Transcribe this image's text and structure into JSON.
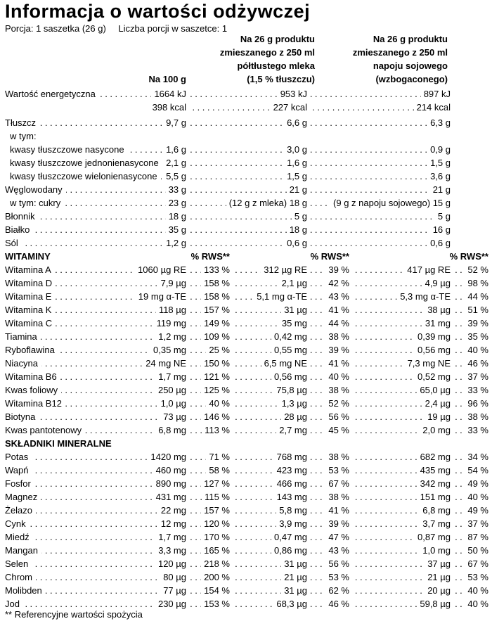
{
  "page": {
    "title": "Informacja o wartości odżywczej",
    "serving": "Porcja: 1 saszetka (26 g)",
    "servings_per_pack": "Liczba porcji w saszetce: 1",
    "footnote": "** Referencyjne wartości spożycia"
  },
  "columns": {
    "per_100g": "Na 100 g",
    "milk": [
      "Na 26 g produktu",
      "zmieszanego z 250 ml",
      "półtłustego mleka",
      "(1,5 % tłuszczu)"
    ],
    "soy": [
      "Na 26 g produktu",
      "zmieszanego z 250 ml",
      "napoju sojowego",
      "(wzbogaconego)"
    ],
    "rws_header": "% RWS**"
  },
  "rows": [
    {
      "type": "plain",
      "indent": 0,
      "label": "Wartość energetyczna",
      "v1": "1664 kJ",
      "v2": "953 kJ",
      "v3": "897 kJ"
    },
    {
      "type": "cont",
      "indent": 0,
      "label": "",
      "v1": "398 kcal",
      "v2": "227 kcal",
      "v3": "214 kcal"
    },
    {
      "type": "plain",
      "indent": 0,
      "label": "Tłuszcz",
      "v1": "9,7 g",
      "v2": "6,6 g",
      "v3": "6,3 g"
    },
    {
      "type": "subnote",
      "indent": 1,
      "label": "w tym:"
    },
    {
      "type": "plain",
      "indent": 1,
      "label": "kwasy tłuszczowe nasycone",
      "v1": "1,6 g",
      "v2": "3,0 g",
      "v3": "0,9 g"
    },
    {
      "type": "plain",
      "indent": 1,
      "label": "kwasy tłuszczowe jednonienasycone",
      "v1": "2,1 g",
      "v2": "1,6 g",
      "v3": "1,5 g"
    },
    {
      "type": "plain",
      "indent": 1,
      "label": "kwasy tłuszczowe wielonienasycone",
      "v1": "5,5 g",
      "v2": "1,5 g",
      "v3": "3,6 g"
    },
    {
      "type": "plain",
      "indent": 0,
      "label": "Węglowodany",
      "v1": "33 g",
      "v2": "21 g",
      "v3": "21 g"
    },
    {
      "type": "plain",
      "indent": 1,
      "label": "w tym: cukry",
      "v1": "23 g",
      "v2": "(12 g z mleka) 18 g",
      "v3": "(9 g z napoju sojowego) 15 g"
    },
    {
      "type": "plain",
      "indent": 0,
      "label": "Błonnik",
      "v1": "18 g",
      "v2": "5 g",
      "v3": "5 g"
    },
    {
      "type": "plain",
      "indent": 0,
      "label": "Białko",
      "v1": "35 g",
      "v2": "18 g",
      "v3": "16 g"
    },
    {
      "type": "plain",
      "indent": 0,
      "label": "Sól",
      "v1": "1,2 g",
      "v2": "0,6 g",
      "v3": "0,6 g"
    },
    {
      "type": "section-rws",
      "indent": 0,
      "label": "WITAMINY"
    },
    {
      "type": "rws",
      "indent": 0,
      "label": "Witamina A",
      "v1": "1060 µg RE",
      "rws1": "133 %",
      "v2": "312 µg RE",
      "rws2": "39 %",
      "v3": "417 µg RE",
      "rws3": "52 %"
    },
    {
      "type": "rws",
      "indent": 0,
      "label": "Witamina D",
      "v1": "7,9 µg",
      "rws1": "158 %",
      "v2": "2,1 µg",
      "rws2": "42 %",
      "v3": "4,9 µg",
      "rws3": "98 %"
    },
    {
      "type": "rws",
      "indent": 0,
      "label": "Witamina E",
      "v1": "19 mg α-TE",
      "rws1": "158 %",
      "v2": "5,1 mg α-TE",
      "rws2": "43 %",
      "v3": "5,3 mg α-TE",
      "rws3": "44 %"
    },
    {
      "type": "rws",
      "indent": 0,
      "label": "Witamina K",
      "v1": "118 µg",
      "rws1": "157 %",
      "v2": "31 µg",
      "rws2": "41 %",
      "v3": "38 µg",
      "rws3": "51 %"
    },
    {
      "type": "rws",
      "indent": 0,
      "label": "Witamina C",
      "v1": "119 mg",
      "rws1": "149 %",
      "v2": "35 mg",
      "rws2": "44 %",
      "v3": "31 mg",
      "rws3": "39 %"
    },
    {
      "type": "rws",
      "indent": 0,
      "label": "Tiamina",
      "v1": "1,2 mg",
      "rws1": "109 %",
      "v2": "0,42 mg",
      "rws2": "38 %",
      "v3": "0,39 mg",
      "rws3": "35 %"
    },
    {
      "type": "rws",
      "indent": 0,
      "label": "Ryboflawina",
      "v1": "0,35 mg",
      "rws1": "25 %",
      "v2": "0,55 mg",
      "rws2": "39 %",
      "v3": "0,56 mg",
      "rws3": "40 %"
    },
    {
      "type": "rws",
      "indent": 0,
      "label": "Niacyna",
      "v1": "24 mg NE",
      "rws1": "150 %",
      "v2": "6,5 mg NE",
      "rws2": "41 %",
      "v3": "7,3 mg NE",
      "rws3": "46 %"
    },
    {
      "type": "rws",
      "indent": 0,
      "label": "Witamina B6",
      "v1": "1,7 mg",
      "rws1": "121 %",
      "v2": "0,56 mg",
      "rws2": "40 %",
      "v3": "0,52 mg",
      "rws3": "37 %"
    },
    {
      "type": "rws",
      "indent": 0,
      "label": "Kwas foliowy",
      "v1": "250 µg",
      "rws1": "125 %",
      "v2": "75,8 µg",
      "rws2": "38 %",
      "v3": "65,0 µg",
      "rws3": "33 %"
    },
    {
      "type": "rws",
      "indent": 0,
      "label": "Witamina B12",
      "v1": "1,0 µg",
      "rws1": "40 %",
      "v2": "1,3 µg",
      "rws2": "52 %",
      "v3": "2,4 µg",
      "rws3": "96 %"
    },
    {
      "type": "rws",
      "indent": 0,
      "label": "Biotyna",
      "v1": "73 µg",
      "rws1": "146 %",
      "v2": "28 µg",
      "rws2": "56 %",
      "v3": "19 µg",
      "rws3": "38 %"
    },
    {
      "type": "rws",
      "indent": 0,
      "label": "Kwas pantotenowy",
      "v1": "6,8 mg",
      "rws1": "113 %",
      "v2": "2,7 mg",
      "rws2": "45 %",
      "v3": "2,0 mg",
      "rws3": "33 %"
    },
    {
      "type": "section",
      "indent": 0,
      "label": "SKŁADNIKI MINERALNE"
    },
    {
      "type": "rws",
      "indent": 0,
      "label": "Potas",
      "v1": "1420 mg",
      "rws1": "71 %",
      "v2": "768 mg",
      "rws2": "38 %",
      "v3": "682 mg",
      "rws3": "34 %"
    },
    {
      "type": "rws",
      "indent": 0,
      "label": "Wapń",
      "v1": "460 mg",
      "rws1": "58 %",
      "v2": "423 mg",
      "rws2": "53 %",
      "v3": "435 mg",
      "rws3": "54 %"
    },
    {
      "type": "rws",
      "indent": 0,
      "label": "Fosfor",
      "v1": "890 mg",
      "rws1": "127 %",
      "v2": "466 mg",
      "rws2": "67 %",
      "v3": "342 mg",
      "rws3": "49 %"
    },
    {
      "type": "rws",
      "indent": 0,
      "label": "Magnez",
      "v1": "431 mg",
      "rws1": "115 %",
      "v2": "143 mg",
      "rws2": "38 %",
      "v3": "151 mg",
      "rws3": "40 %"
    },
    {
      "type": "rws",
      "indent": 0,
      "label": "Żelazo",
      "v1": "22 mg",
      "rws1": "157 %",
      "v2": "5,8 mg",
      "rws2": "41 %",
      "v3": "6,8 mg",
      "rws3": "49 %"
    },
    {
      "type": "rws",
      "indent": 0,
      "label": "Cynk",
      "v1": "12 mg",
      "rws1": "120 %",
      "v2": "3,9 mg",
      "rws2": "39 %",
      "v3": "3,7 mg",
      "rws3": "37 %"
    },
    {
      "type": "rws",
      "indent": 0,
      "label": "Miedź",
      "v1": "1,7 mg",
      "rws1": "170 %",
      "v2": "0,47 mg",
      "rws2": "47 %",
      "v3": "0,87 mg",
      "rws3": "87 %"
    },
    {
      "type": "rws",
      "indent": 0,
      "label": "Mangan",
      "v1": "3,3 mg",
      "rws1": "165 %",
      "v2": "0,86 mg",
      "rws2": "43 %",
      "v3": "1,0 mg",
      "rws3": "50 %"
    },
    {
      "type": "rws",
      "indent": 0,
      "label": "Selen",
      "v1": "120 µg",
      "rws1": "218 %",
      "v2": "31 µg",
      "rws2": "56 %",
      "v3": "37 µg",
      "rws3": "67 %"
    },
    {
      "type": "rws",
      "indent": 0,
      "label": "Chrom",
      "v1": "80 µg",
      "rws1": "200 %",
      "v2": "21 µg",
      "rws2": "53 %",
      "v3": "21 µg",
      "rws3": "53 %"
    },
    {
      "type": "rws",
      "indent": 0,
      "label": "Molibden",
      "v1": "77 µg",
      "rws1": "154 %",
      "v2": "31 µg",
      "rws2": "62 %",
      "v3": "20 µg",
      "rws3": "40 %"
    },
    {
      "type": "rws",
      "indent": 0,
      "label": "Jod",
      "v1": "230 µg",
      "rws1": "153 %",
      "v2": "68,3 µg",
      "rws2": "46 %",
      "v3": "59,8 µg",
      "rws3": "40 %"
    }
  ]
}
